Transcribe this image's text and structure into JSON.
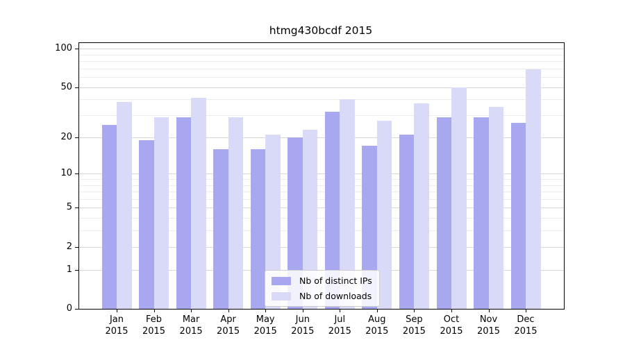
{
  "chart_data": {
    "type": "bar",
    "title": "htmg430bcdf 2015",
    "categories": [
      "Jan 2015",
      "Feb 2015",
      "Mar 2015",
      "Apr 2015",
      "May 2015",
      "Jun 2015",
      "Jul 2015",
      "Aug 2015",
      "Sep 2015",
      "Oct 2015",
      "Nov 2015",
      "Dec 2015"
    ],
    "series": [
      {
        "name": "Nb of distinct IPs",
        "color": "#a8a8f0",
        "values": [
          25,
          19,
          29,
          16,
          16,
          20,
          32,
          17,
          21,
          29,
          29,
          26
        ]
      },
      {
        "name": "Nb of downloads",
        "color": "#d9d9f8",
        "values": [
          38,
          29,
          41,
          29,
          21,
          23,
          40,
          27,
          37,
          50,
          35,
          69
        ]
      }
    ],
    "xlabel": "",
    "ylabel": "",
    "y_axis": {
      "scale": "log10(1+v)",
      "major_ticks": [
        100,
        50,
        20,
        10,
        5,
        2,
        1,
        0
      ],
      "minor_gridlines": [
        3,
        4,
        6,
        7,
        8,
        9,
        30,
        40,
        60,
        70,
        80,
        90
      ],
      "ylim": [
        0,
        112
      ]
    },
    "grid": "on",
    "legend": {
      "position": "lower center",
      "labels": [
        "Nb of distinct IPs",
        "Nb of downloads"
      ]
    },
    "colors": {
      "bar_dark": "#a8a8f0",
      "bar_light": "#d9d9f8",
      "grid_major": "#d6d6d6",
      "grid_minor": "#ececec",
      "axis": "#000000"
    }
  }
}
